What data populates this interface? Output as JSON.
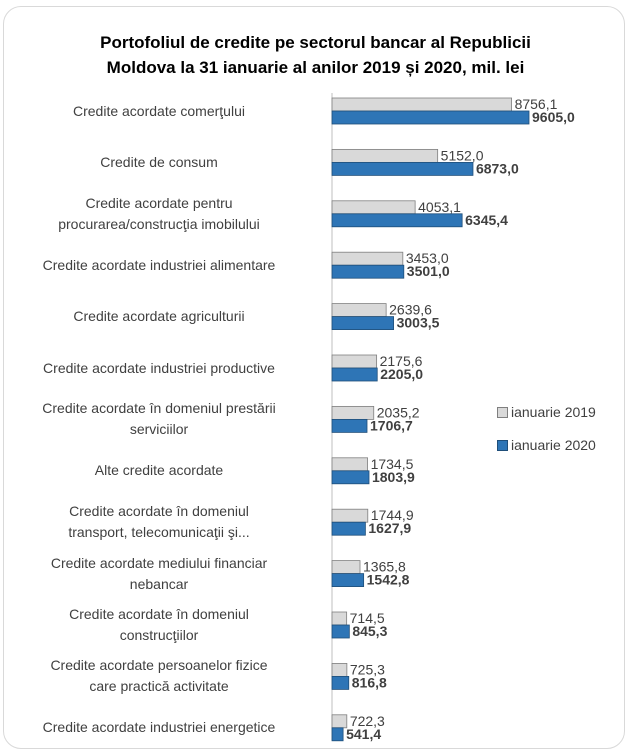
{
  "chart_data": {
    "type": "bar",
    "orientation": "horizontal",
    "title": "Portofoliul de credite pe sectorul bancar al Republicii Moldova la 31 ianuarie al anilor 2019 și 2020, mil. lei",
    "title_lines": [
      "Portofoliul de credite pe sectorul bancar al Republicii",
      "Moldova la 31 ianuarie al anilor 2019 și 2020, mil. lei"
    ],
    "categories": [
      [
        "Credite acordate comerţului"
      ],
      [
        "Credite de consum"
      ],
      [
        "Credite acordate pentru",
        "procurarea/construcţia imobilului"
      ],
      [
        "Credite acordate industriei alimentare"
      ],
      [
        "Credite acordate agriculturii"
      ],
      [
        "Credite acordate industriei productive"
      ],
      [
        "Credite acordate în domeniul prestării",
        "serviciilor"
      ],
      [
        "Alte credite acordate"
      ],
      [
        "Credite acordate în domeniul",
        "transport, telecomunicaţii şi..."
      ],
      [
        "Credite acordate mediului financiar",
        "nebancar"
      ],
      [
        "Credite acordate în domeniul",
        "construcţiilor"
      ],
      [
        "Credite acordate persoanelor fizice",
        "care practică activitate"
      ],
      [
        "Credite acordate industriei energetice"
      ]
    ],
    "series": [
      {
        "name": "ianuarie 2019",
        "color": "#d9d9d9",
        "values": [
          8756.1,
          5152.0,
          4053.1,
          3453.0,
          2639.6,
          2175.6,
          2035.2,
          1734.5,
          1744.9,
          1365.8,
          714.5,
          725.3,
          722.3
        ],
        "labels": [
          "8756,1",
          "5152,0",
          "4053,1",
          "3453,0",
          "2639,6",
          "2175,6",
          "2035,2",
          "1734,5",
          "1744,9",
          "1365,8",
          "714,5",
          "725,3",
          "722,3"
        ]
      },
      {
        "name": "ianuarie 2020",
        "color": "#2e75b6",
        "values": [
          9605.0,
          6873.0,
          6345.4,
          3501.0,
          3003.5,
          2205.0,
          1706.7,
          1803.9,
          1627.9,
          1542.8,
          845.3,
          816.8,
          541.4
        ],
        "labels": [
          "9605,0",
          "6873,0",
          "6345,4",
          "3501,0",
          "3003,5",
          "2205,0",
          "1706,7",
          "1803,9",
          "1627,9",
          "1542,8",
          "845,3",
          "816,8",
          "541,4"
        ]
      }
    ],
    "legend_position": "right",
    "grid": false
  }
}
